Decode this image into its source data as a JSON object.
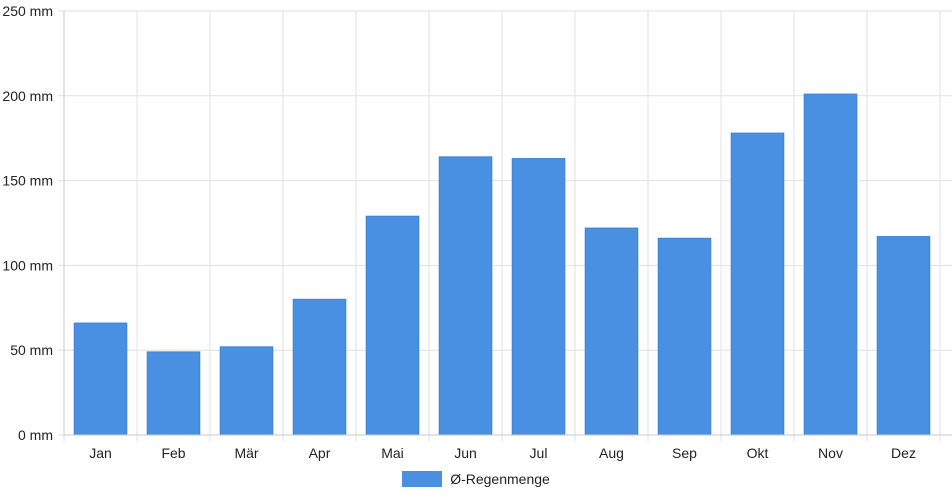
{
  "chart_data": {
    "type": "bar",
    "categories": [
      "Jan",
      "Feb",
      "Mär",
      "Apr",
      "Mai",
      "Jun",
      "Jul",
      "Aug",
      "Sep",
      "Okt",
      "Nov",
      "Dez"
    ],
    "series": [
      {
        "name": "Ø-Regenmenge",
        "values": [
          66,
          49,
          52,
          80,
          129,
          164,
          163,
          122,
          116,
          178,
          201,
          117
        ]
      }
    ],
    "yticks": [
      "0 mm",
      "50 mm",
      "100 mm",
      "150 mm",
      "200 mm",
      "250 mm"
    ],
    "ylim": [
      0,
      250
    ],
    "ystep": 50,
    "grid": true,
    "legend_position": "bottom-center",
    "bar_color": "#4a90e2",
    "grid_color": "#e0e0e0"
  }
}
